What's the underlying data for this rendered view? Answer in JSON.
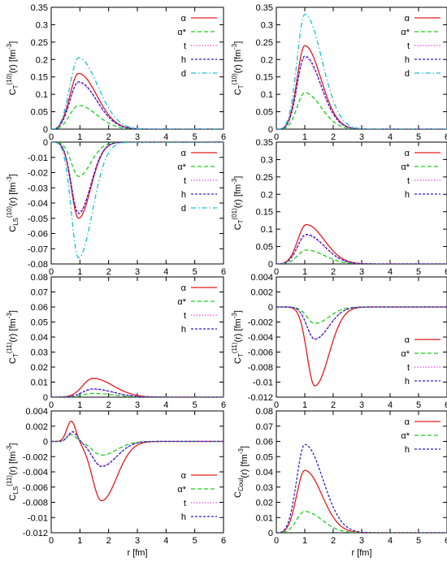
{
  "colors": {
    "alpha": "#e41a1c",
    "alpha_star": "#1fcc1f",
    "t": "#d92bd9",
    "h": "#2a22c6",
    "d": "#16c2d4"
  },
  "chart_data": [
    {
      "id": "p1",
      "type": "line",
      "ylabel_base": "C",
      "ylabel_sub": "T",
      "ylabel_sup": "(10)",
      "ylabel_rest": "(r) [fm",
      "ylabel_unit_sup": "-3",
      "ylabel_close": "]",
      "xlim": [
        0,
        6
      ],
      "ylim": [
        0,
        0.35
      ],
      "yticks": [
        "0",
        "0.05",
        "0.1",
        "0.15",
        "0.2",
        "0.25",
        "0.3",
        "0.35"
      ],
      "xticks": [
        "0",
        "1",
        "2",
        "3",
        "4",
        "5",
        "6"
      ],
      "xlabel": "",
      "series": [
        {
          "name": "α",
          "key": "alpha",
          "peak": 0.16,
          "center": 0.95,
          "rise": 0.42,
          "fall": 0.9,
          "dash": "solid"
        },
        {
          "name": "α*",
          "key": "alpha_star",
          "peak": 0.068,
          "center": 0.95,
          "rise": 0.42,
          "fall": 0.9,
          "dash": "dashed"
        },
        {
          "name": "t",
          "key": "t",
          "peak": 0.133,
          "center": 0.95,
          "rise": 0.42,
          "fall": 0.9,
          "dash": "dotted"
        },
        {
          "name": "h",
          "key": "h",
          "peak": 0.136,
          "center": 0.95,
          "rise": 0.42,
          "fall": 0.9,
          "dash": "shortdash"
        },
        {
          "name": "d",
          "key": "d",
          "peak": 0.205,
          "center": 0.95,
          "rise": 0.42,
          "fall": 0.95,
          "dash": "dashdot"
        }
      ]
    },
    {
      "id": "p2",
      "type": "line",
      "ylabel_base": "C",
      "ylabel_sub": "T",
      "ylabel_sup": "(10)",
      "ylabel_rest": "(r) [fm",
      "ylabel_unit_sup": "-3",
      "ylabel_close": "]",
      "xlim": [
        0,
        6
      ],
      "ylim": [
        0,
        0.35
      ],
      "yticks": [
        "0",
        "0.05",
        "0.1",
        "0.15",
        "0.2",
        "0.25",
        "0.3",
        "0.35"
      ],
      "xticks": [
        "0",
        "1",
        "2",
        "3",
        "4",
        "5",
        "6"
      ],
      "xlabel": "",
      "series": [
        {
          "name": "α",
          "key": "alpha",
          "peak": 0.24,
          "center": 1.0,
          "rise": 0.38,
          "fall": 0.8,
          "dash": "solid"
        },
        {
          "name": "α*",
          "key": "alpha_star",
          "peak": 0.105,
          "center": 1.0,
          "rise": 0.38,
          "fall": 0.8,
          "dash": "dashed"
        },
        {
          "name": "t",
          "key": "t",
          "peak": 0.205,
          "center": 1.0,
          "rise": 0.38,
          "fall": 0.8,
          "dash": "dotted"
        },
        {
          "name": "h",
          "key": "h",
          "peak": 0.21,
          "center": 1.0,
          "rise": 0.38,
          "fall": 0.8,
          "dash": "shortdash"
        },
        {
          "name": "d",
          "key": "d",
          "peak": 0.33,
          "center": 1.0,
          "rise": 0.38,
          "fall": 0.85,
          "dash": "dashdot"
        }
      ]
    },
    {
      "id": "p3",
      "type": "line",
      "ylabel_base": "C",
      "ylabel_sub": "LS",
      "ylabel_sup": "(10)",
      "ylabel_rest": "(r) [fm",
      "ylabel_unit_sup": "-3",
      "ylabel_close": "]",
      "xlim": [
        0,
        6
      ],
      "ylim": [
        -0.08,
        0
      ],
      "yticks": [
        "0",
        "-0.01",
        "-0.02",
        "-0.03",
        "-0.04",
        "-0.05",
        "-0.06",
        "-0.07",
        "-0.08"
      ],
      "xticks": [
        "0",
        "1",
        "2",
        "3",
        "4",
        "5",
        "6"
      ],
      "xlabel": "",
      "series": [
        {
          "name": "α",
          "key": "alpha",
          "peak": -0.05,
          "center": 0.95,
          "rise": 0.35,
          "fall": 0.6,
          "dash": "solid"
        },
        {
          "name": "α*",
          "key": "alpha_star",
          "peak": -0.0225,
          "center": 0.95,
          "rise": 0.35,
          "fall": 0.6,
          "dash": "dashed"
        },
        {
          "name": "t",
          "key": "t",
          "peak": -0.046,
          "center": 0.95,
          "rise": 0.35,
          "fall": 0.6,
          "dash": "dotted"
        },
        {
          "name": "h",
          "key": "h",
          "peak": -0.047,
          "center": 0.95,
          "rise": 0.35,
          "fall": 0.6,
          "dash": "shortdash"
        },
        {
          "name": "d",
          "key": "d",
          "peak": -0.076,
          "center": 0.95,
          "rise": 0.35,
          "fall": 0.68,
          "dash": "dashdot"
        }
      ]
    },
    {
      "id": "p4",
      "type": "line",
      "ylabel_base": "C",
      "ylabel_sub": "T",
      "ylabel_sup": "(01)",
      "ylabel_rest": "(r) [fm",
      "ylabel_unit_sup": "-3",
      "ylabel_close": "]",
      "xlim": [
        0,
        6
      ],
      "ylim": [
        0,
        0.35
      ],
      "yticks": [
        "0",
        "0.05",
        "0.1",
        "0.15",
        "0.2",
        "0.25",
        "0.3",
        "0.35"
      ],
      "xticks": [
        "0",
        "1",
        "2",
        "3",
        "4",
        "5",
        "6"
      ],
      "xlabel": "",
      "series": [
        {
          "name": "α",
          "key": "alpha",
          "peak": 0.113,
          "center": 1.05,
          "rise": 0.42,
          "fall": 0.9,
          "dash": "solid"
        },
        {
          "name": "α*",
          "key": "alpha_star",
          "peak": 0.04,
          "center": 1.05,
          "rise": 0.42,
          "fall": 0.9,
          "dash": "dashed"
        },
        {
          "name": "t",
          "key": "t",
          "peak": 0.082,
          "center": 1.05,
          "rise": 0.42,
          "fall": 0.9,
          "dash": "dotted"
        },
        {
          "name": "h",
          "key": "h",
          "peak": 0.085,
          "center": 1.05,
          "rise": 0.42,
          "fall": 0.9,
          "dash": "shortdash"
        }
      ]
    },
    {
      "id": "p5",
      "type": "line",
      "ylabel_base": "C",
      "ylabel_sub": "T",
      "ylabel_sup": "(11)",
      "ylabel_rest": "(r) [fm",
      "ylabel_unit_sup": "-3",
      "ylabel_close": "]",
      "xlim": [
        0,
        6
      ],
      "ylim": [
        0,
        0.08
      ],
      "yticks": [
        "0",
        "0.01",
        "0.02",
        "0.03",
        "0.04",
        "0.05",
        "0.06",
        "0.07",
        "0.08"
      ],
      "xticks": [
        "0",
        "1",
        "2",
        "3",
        "4",
        "5",
        "6"
      ],
      "xlabel": "",
      "series": [
        {
          "name": "α",
          "key": "alpha",
          "peak": 0.0125,
          "center": 1.45,
          "rise": 0.5,
          "fall": 1.0,
          "dash": "solid"
        },
        {
          "name": "α*",
          "key": "alpha_star",
          "peak": 0.0025,
          "center": 1.45,
          "rise": 0.5,
          "fall": 1.0,
          "dash": "dashed"
        },
        {
          "name": "t",
          "key": "t",
          "peak": 0.0052,
          "center": 1.45,
          "rise": 0.5,
          "fall": 1.0,
          "dash": "dotted"
        },
        {
          "name": "h",
          "key": "h",
          "peak": 0.0055,
          "center": 1.45,
          "rise": 0.5,
          "fall": 1.0,
          "dash": "shortdash"
        }
      ]
    },
    {
      "id": "p6",
      "type": "line",
      "ylabel_base": "C",
      "ylabel_sub": "T",
      "ylabel_sup": "(11)",
      "ylabel_rest": "(r) [fm",
      "ylabel_unit_sup": "-3",
      "ylabel_close": "]",
      "xlim": [
        0,
        6
      ],
      "ylim": [
        -0.012,
        0.004
      ],
      "yticks": [
        "0.004",
        "0.002",
        "0",
        "-0.002",
        "-0.004",
        "-0.006",
        "-0.008",
        "-0.01",
        "-0.012"
      ],
      "xticks": [
        "0",
        "1",
        "2",
        "3",
        "4",
        "5",
        "6"
      ],
      "xlabel": "",
      "series": [
        {
          "name": "α",
          "key": "alpha",
          "peak": -0.0105,
          "center": 1.35,
          "rise": 0.38,
          "fall": 0.7,
          "dash": "solid"
        },
        {
          "name": "α*",
          "key": "alpha_star",
          "peak": -0.0022,
          "center": 1.35,
          "rise": 0.38,
          "fall": 0.7,
          "dash": "dashed"
        },
        {
          "name": "t",
          "key": "t",
          "peak": -0.0042,
          "center": 1.35,
          "rise": 0.38,
          "fall": 0.7,
          "dash": "dotted"
        },
        {
          "name": "h",
          "key": "h",
          "peak": -0.0043,
          "center": 1.35,
          "rise": 0.38,
          "fall": 0.7,
          "dash": "shortdash"
        }
      ]
    },
    {
      "id": "p7",
      "type": "line",
      "ylabel_base": "C",
      "ylabel_sub": "LS",
      "ylabel_sup": "(11)",
      "ylabel_rest": "(r) [fm",
      "ylabel_unit_sup": "-3",
      "ylabel_close": "]",
      "xlim": [
        0,
        6
      ],
      "ylim": [
        -0.012,
        0.004
      ],
      "yticks": [
        "0.004",
        "0.002",
        "0",
        "-0.002",
        "-0.004",
        "-0.006",
        "-0.008",
        "-0.01",
        "-0.012"
      ],
      "xticks": [
        "0",
        "1",
        "2",
        "3",
        "4",
        "5",
        "6"
      ],
      "xlabel": "r [fm]",
      "series": [
        {
          "name": "α",
          "key": "alpha",
          "bimodal": true,
          "pos_peak": 0.0027,
          "pos_center": 0.7,
          "pos_width": 0.22,
          "neg_peak": -0.0078,
          "neg_center": 1.75,
          "neg_rise": 0.45,
          "neg_fall": 0.75,
          "dash": "solid"
        },
        {
          "name": "α*",
          "key": "alpha_star",
          "bimodal": true,
          "pos_peak": 0.0009,
          "pos_center": 0.7,
          "pos_width": 0.22,
          "neg_peak": -0.0018,
          "neg_center": 1.75,
          "neg_rise": 0.45,
          "neg_fall": 0.75,
          "dash": "dashed"
        },
        {
          "name": "t",
          "key": "t",
          "bimodal": true,
          "pos_peak": 0.0012,
          "pos_center": 0.75,
          "pos_width": 0.22,
          "neg_peak": -0.0032,
          "neg_center": 1.75,
          "neg_rise": 0.45,
          "neg_fall": 0.75,
          "dash": "dotted"
        },
        {
          "name": "h",
          "key": "h",
          "bimodal": true,
          "pos_peak": 0.0013,
          "pos_center": 0.75,
          "pos_width": 0.22,
          "neg_peak": -0.0033,
          "neg_center": 1.75,
          "neg_rise": 0.45,
          "neg_fall": 0.75,
          "dash": "shortdash"
        }
      ]
    },
    {
      "id": "p8",
      "type": "line",
      "ylabel_base": "C",
      "ylabel_sub": "Coul",
      "ylabel_sup": "",
      "ylabel_rest": "(r) [fm",
      "ylabel_unit_sup": "-3",
      "ylabel_close": "]",
      "xlim": [
        0,
        6
      ],
      "ylim": [
        0,
        0.08
      ],
      "yticks": [
        "0",
        "0.01",
        "0.02",
        "0.03",
        "0.04",
        "0.05",
        "0.06",
        "0.07",
        "0.08"
      ],
      "xticks": [
        "0",
        "1",
        "2",
        "3",
        "4",
        "5",
        "6"
      ],
      "xlabel": "r [fm]",
      "series": [
        {
          "name": "α",
          "key": "alpha",
          "peak": 0.041,
          "center": 1.0,
          "rise": 0.4,
          "fall": 0.85,
          "dash": "solid"
        },
        {
          "name": "α*",
          "key": "alpha_star",
          "peak": 0.014,
          "center": 1.0,
          "rise": 0.4,
          "fall": 0.85,
          "dash": "dashed"
        },
        {
          "name": "h",
          "key": "h",
          "peak": 0.058,
          "center": 1.0,
          "rise": 0.4,
          "fall": 0.9,
          "dash": "shortdash"
        }
      ]
    }
  ]
}
